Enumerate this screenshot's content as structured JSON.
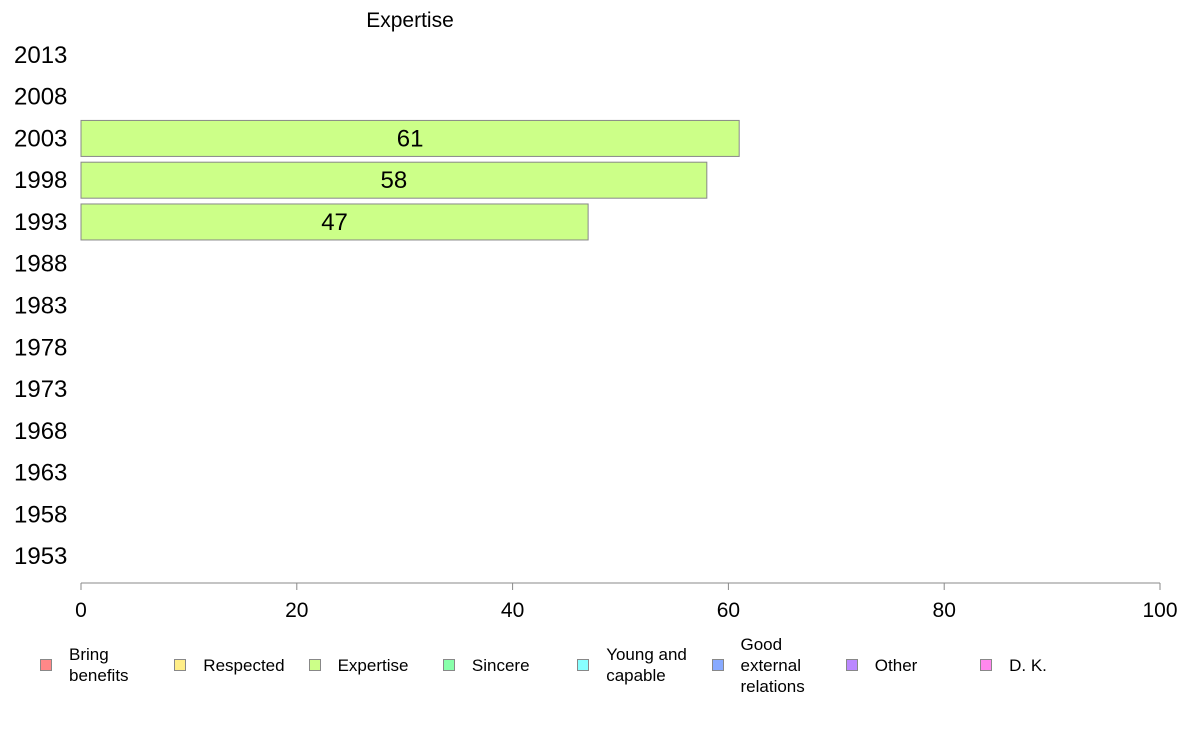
{
  "chart_data": {
    "type": "bar",
    "orientation": "horizontal",
    "title": "Expertise",
    "xlabel": "",
    "ylabel": "",
    "categories": [
      "2013",
      "2008",
      "2003",
      "1998",
      "1993",
      "1988",
      "1983",
      "1978",
      "1973",
      "1968",
      "1963",
      "1958",
      "1953"
    ],
    "series": [
      {
        "name": "Expertise",
        "color": "#ccff88",
        "values": [
          null,
          null,
          61,
          58,
          47,
          null,
          null,
          null,
          null,
          null,
          null,
          null,
          null
        ]
      }
    ],
    "xlim": [
      0,
      100
    ],
    "xticks": [
      "0",
      "20",
      "40",
      "60",
      "80",
      "100"
    ],
    "grid": false,
    "legend_position": "bottom",
    "legend": [
      {
        "label": "Bring\nbenefits",
        "color": "#ff8888"
      },
      {
        "label": "Respected",
        "color": "#ffee88"
      },
      {
        "label": "Expertise",
        "color": "#ccff88"
      },
      {
        "label": "Sincere",
        "color": "#88ffaa"
      },
      {
        "label": "Young and\ncapable",
        "color": "#88ffff"
      },
      {
        "label": "Good\nexternal\nrelations",
        "color": "#88aaff"
      },
      {
        "label": "Other",
        "color": "#bb88ff"
      },
      {
        "label": "D. K.",
        "color": "#ff88ee"
      }
    ]
  }
}
